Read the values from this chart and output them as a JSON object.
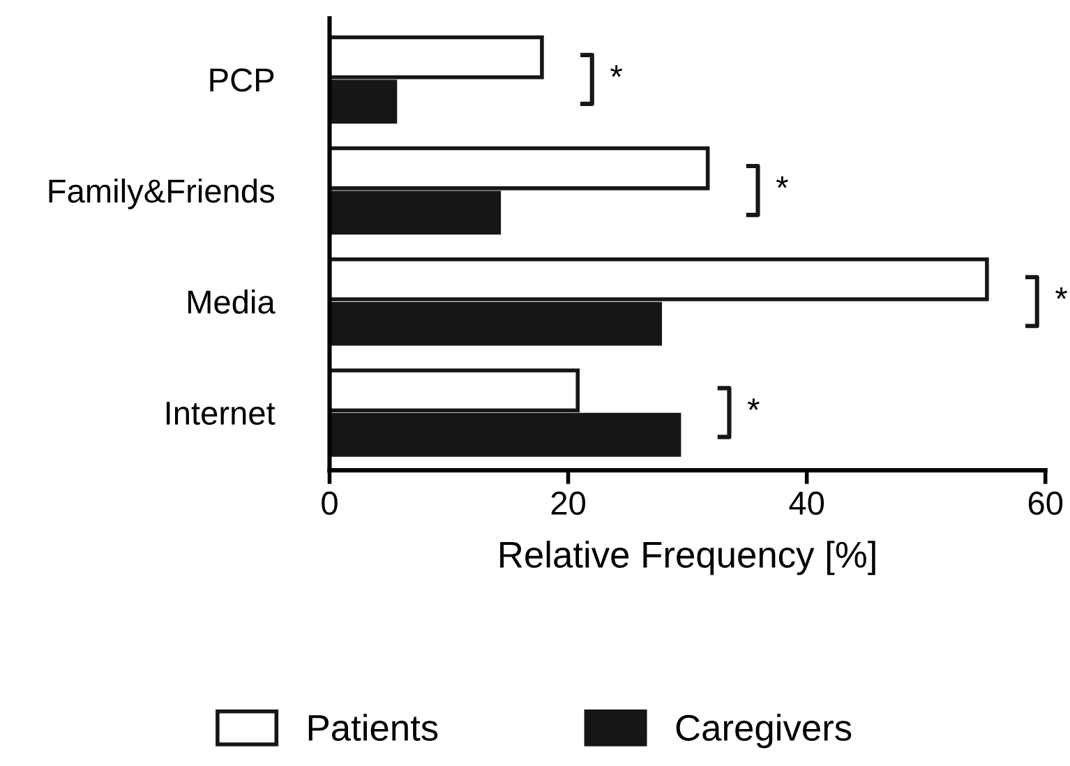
{
  "chart_data": {
    "type": "bar",
    "orientation": "horizontal",
    "xlabel": "Relative Frequency [%]",
    "categories": [
      "PCP",
      "Family&Friends",
      "Media",
      "Internet"
    ],
    "series": [
      {
        "name": "Patients",
        "color": "#ffffff",
        "values": [
          17.8,
          31.7,
          55.1,
          20.8
        ]
      },
      {
        "name": "Caregivers",
        "color": "#161616",
        "values": [
          5.5,
          14.2,
          27.7,
          29.3
        ]
      }
    ],
    "xlim": [
      0,
      60
    ],
    "xticks": [
      0,
      20,
      40,
      60
    ],
    "grid": false,
    "legend": "bottom",
    "annotations": [
      "*",
      "*",
      "*",
      "*"
    ]
  }
}
